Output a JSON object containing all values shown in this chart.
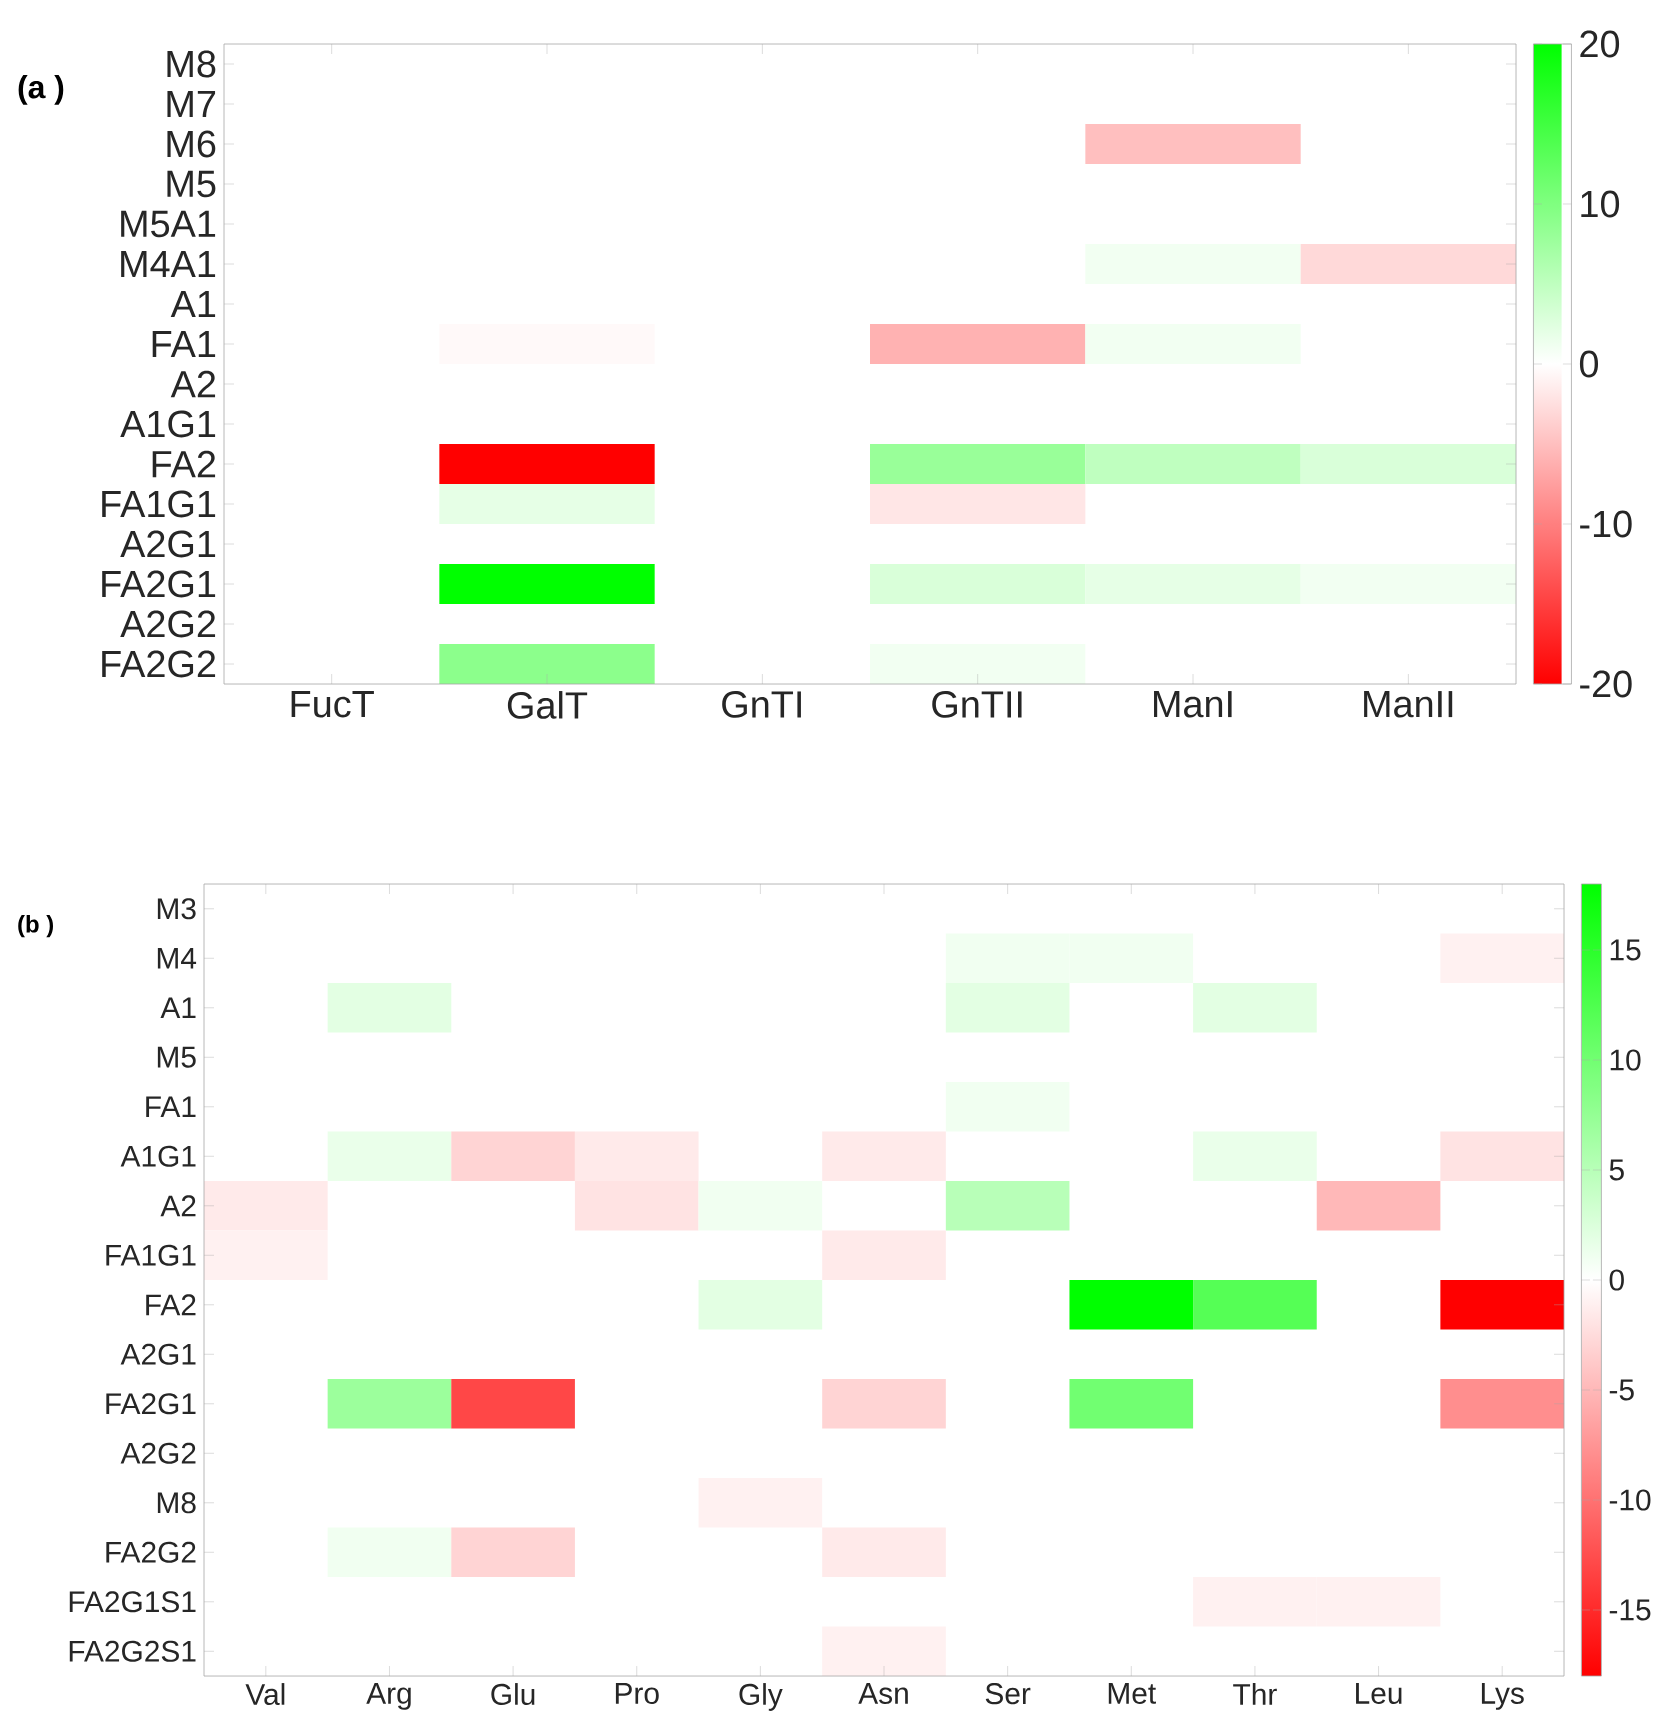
{
  "chart_data": [
    {
      "type": "heatmap",
      "annotations": [
        "(a )"
      ],
      "categories": [
        "FucT",
        "GalT",
        "GnTI",
        "GnTII",
        "ManI",
        "ManII"
      ],
      "y_categories": [
        "M8",
        "M7",
        "M6",
        "M5",
        "M5A1",
        "M4A1",
        "A1",
        "FA1",
        "A2",
        "A1G1",
        "FA2",
        "FA1G1",
        "A2G1",
        "FA2G1",
        "A2G2",
        "FA2G2"
      ],
      "cells": [
        [
          null,
          null,
          null,
          null,
          null,
          null
        ],
        [
          null,
          null,
          null,
          null,
          null,
          null
        ],
        [
          null,
          null,
          null,
          null,
          -5,
          null
        ],
        [
          null,
          null,
          null,
          null,
          null,
          null
        ],
        [
          null,
          null,
          null,
          null,
          null,
          null
        ],
        [
          null,
          null,
          null,
          null,
          1,
          -3
        ],
        [
          null,
          null,
          null,
          null,
          null,
          null
        ],
        [
          null,
          -0.5,
          null,
          -6,
          1,
          null
        ],
        [
          null,
          null,
          null,
          null,
          null,
          null
        ],
        [
          null,
          null,
          null,
          null,
          null,
          null
        ],
        [
          null,
          -20,
          null,
          8,
          5,
          3
        ],
        [
          null,
          2,
          null,
          -2,
          null,
          null
        ],
        [
          null,
          null,
          null,
          null,
          null,
          null
        ],
        [
          null,
          20,
          null,
          3,
          2,
          1
        ],
        [
          null,
          null,
          null,
          null,
          null,
          null
        ],
        [
          null,
          9,
          null,
          1,
          null,
          null
        ]
      ],
      "clim": [
        -20,
        20
      ],
      "cticks": [
        -20,
        -10,
        0,
        10,
        20
      ]
    },
    {
      "type": "heatmap",
      "annotations": [
        "(b )"
      ],
      "categories": [
        "Val",
        "Arg",
        "Glu",
        "Pro",
        "Gly",
        "Asn",
        "Ser",
        "Met",
        "Thr",
        "Leu",
        "Lys"
      ],
      "y_categories": [
        "M3",
        "M4",
        "A1",
        "M5",
        "FA1",
        "A1G1",
        "A2",
        "FA1G1",
        "FA2",
        "A2G1",
        "FA2G1",
        "A2G2",
        "M8",
        "FA2G2",
        "FA2G1S1",
        "FA2G2S1"
      ],
      "cells": [
        [
          null,
          null,
          null,
          null,
          null,
          null,
          null,
          null,
          null,
          null,
          null
        ],
        [
          null,
          null,
          null,
          null,
          null,
          null,
          1,
          1,
          null,
          null,
          -1
        ],
        [
          null,
          2,
          null,
          null,
          null,
          null,
          2,
          null,
          2,
          null,
          null
        ],
        [
          null,
          null,
          null,
          null,
          null,
          null,
          null,
          null,
          null,
          null,
          null
        ],
        [
          null,
          null,
          null,
          null,
          null,
          null,
          1,
          null,
          null,
          null,
          null
        ],
        [
          null,
          1.5,
          -3,
          -1.5,
          null,
          -1.5,
          null,
          null,
          1.5,
          null,
          -2
        ],
        [
          -1.5,
          null,
          null,
          -2,
          1,
          null,
          5,
          null,
          null,
          -5,
          null
        ],
        [
          -1,
          null,
          null,
          null,
          null,
          -1.5,
          null,
          null,
          null,
          null,
          null
        ],
        [
          null,
          null,
          null,
          null,
          2,
          null,
          null,
          18,
          12,
          null,
          -18
        ],
        [
          null,
          null,
          null,
          null,
          null,
          null,
          null,
          null,
          null,
          null,
          null
        ],
        [
          null,
          7,
          -13,
          null,
          null,
          -3,
          null,
          10,
          null,
          null,
          -8
        ],
        [
          null,
          null,
          null,
          null,
          null,
          null,
          null,
          null,
          null,
          null,
          null
        ],
        [
          null,
          null,
          null,
          null,
          -1,
          null,
          null,
          null,
          null,
          null,
          null
        ],
        [
          null,
          1,
          -3,
          null,
          null,
          -1.5,
          null,
          null,
          null,
          null,
          null
        ],
        [
          null,
          null,
          null,
          null,
          null,
          null,
          null,
          null,
          -1,
          -1,
          null
        ],
        [
          null,
          null,
          null,
          null,
          null,
          -1,
          null,
          null,
          null,
          null,
          null
        ]
      ],
      "clim": [
        -18,
        18
      ],
      "cticks": [
        -15,
        -10,
        -5,
        0,
        5,
        10,
        15
      ]
    }
  ]
}
